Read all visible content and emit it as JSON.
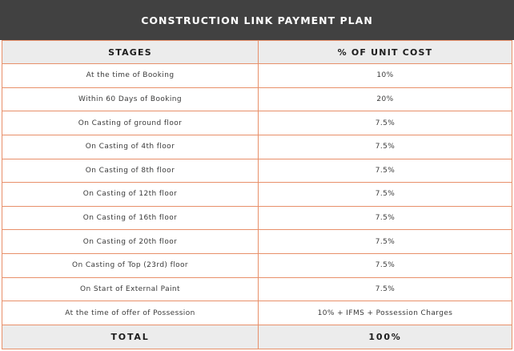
{
  "title": "CONSTRUCTION LINK PAYMENT PLAN",
  "columns": {
    "stage": "STAGES",
    "cost": "% OF UNIT COST"
  },
  "rows": [
    {
      "stage": "At the time of Booking",
      "cost": "10%"
    },
    {
      "stage": "Within 60 Days of Booking",
      "cost": "20%"
    },
    {
      "stage": "On Casting of ground floor",
      "cost": "7.5%"
    },
    {
      "stage": "On Casting of 4th floor",
      "cost": "7.5%"
    },
    {
      "stage": "On Casting of 8th floor",
      "cost": "7.5%"
    },
    {
      "stage": "On Casting of 12th floor",
      "cost": "7.5%"
    },
    {
      "stage": "On Casting of 16th floor",
      "cost": "7.5%"
    },
    {
      "stage": "On Casting of 20th floor",
      "cost": "7.5%"
    },
    {
      "stage": "On Casting of Top (23rd) floor",
      "cost": "7.5%"
    },
    {
      "stage": "On Start of External Paint",
      "cost": "7.5%"
    },
    {
      "stage": "At the time of offer of Possession",
      "cost": "10% + IFMS + Possession Charges"
    }
  ],
  "total": {
    "label": "TOTAL",
    "value": "100%"
  },
  "colors": {
    "header_bg": "#414141",
    "border": "#e8906a",
    "band_bg": "#ececec"
  }
}
